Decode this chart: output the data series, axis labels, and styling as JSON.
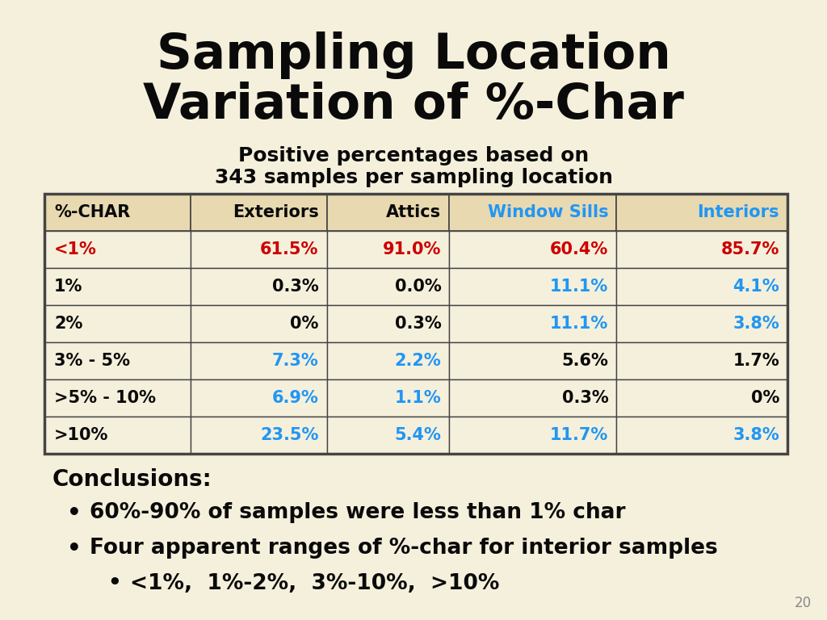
{
  "title_line1": "Sampling Location",
  "title_line2": "Variation of %-Char",
  "subtitle_line1": "Positive percentages based on",
  "subtitle_line2": "343 samples per sampling location",
  "bg_color": "#f5f0dc",
  "title_color": "#0a0a0a",
  "subtitle_color": "#0a0a0a",
  "table": {
    "headers": [
      "%-CHAR",
      "Exteriors",
      "Attics",
      "Window Sills",
      "Interiors"
    ],
    "header_colors": [
      "#0a0a0a",
      "#0a0a0a",
      "#0a0a0a",
      "#2196f3",
      "#2196f3"
    ],
    "rows": [
      [
        "<1%",
        "61.5%",
        "91.0%",
        "60.4%",
        "85.7%"
      ],
      [
        "1%",
        "0.3%",
        "0.0%",
        "11.1%",
        "4.1%"
      ],
      [
        "2%",
        "0%",
        "0.3%",
        "11.1%",
        "3.8%"
      ],
      [
        "3% - 5%",
        "7.3%",
        "2.2%",
        "5.6%",
        "1.7%"
      ],
      [
        ">5% - 10%",
        "6.9%",
        "1.1%",
        "0.3%",
        "0%"
      ],
      [
        ">10%",
        "23.5%",
        "5.4%",
        "11.7%",
        "3.8%"
      ]
    ],
    "row_colors": [
      [
        "#cc0000",
        "#cc0000",
        "#cc0000",
        "#cc0000",
        "#cc0000"
      ],
      [
        "#0a0a0a",
        "#0a0a0a",
        "#0a0a0a",
        "#2196f3",
        "#2196f3"
      ],
      [
        "#0a0a0a",
        "#0a0a0a",
        "#0a0a0a",
        "#2196f3",
        "#2196f3"
      ],
      [
        "#0a0a0a",
        "#2196f3",
        "#2196f3",
        "#0a0a0a",
        "#0a0a0a"
      ],
      [
        "#0a0a0a",
        "#2196f3",
        "#2196f3",
        "#0a0a0a",
        "#0a0a0a"
      ],
      [
        "#0a0a0a",
        "#2196f3",
        "#2196f3",
        "#2196f3",
        "#2196f3"
      ]
    ]
  },
  "conclusions_title": "Conclusions:",
  "conclusions_title_color": "#0a0a0a",
  "bullets": [
    "60%-90% of samples were less than 1% char",
    "Four apparent ranges of %-char for interior samples"
  ],
  "sub_bullet": "<1%,  1%-2%,  3%-10%,  >10%",
  "bullet_color": "#0a0a0a",
  "page_number": "20",
  "table_border_color": "#444444",
  "table_header_bg": "#e8d9b0",
  "table_row_bg": "#f5f0dc"
}
